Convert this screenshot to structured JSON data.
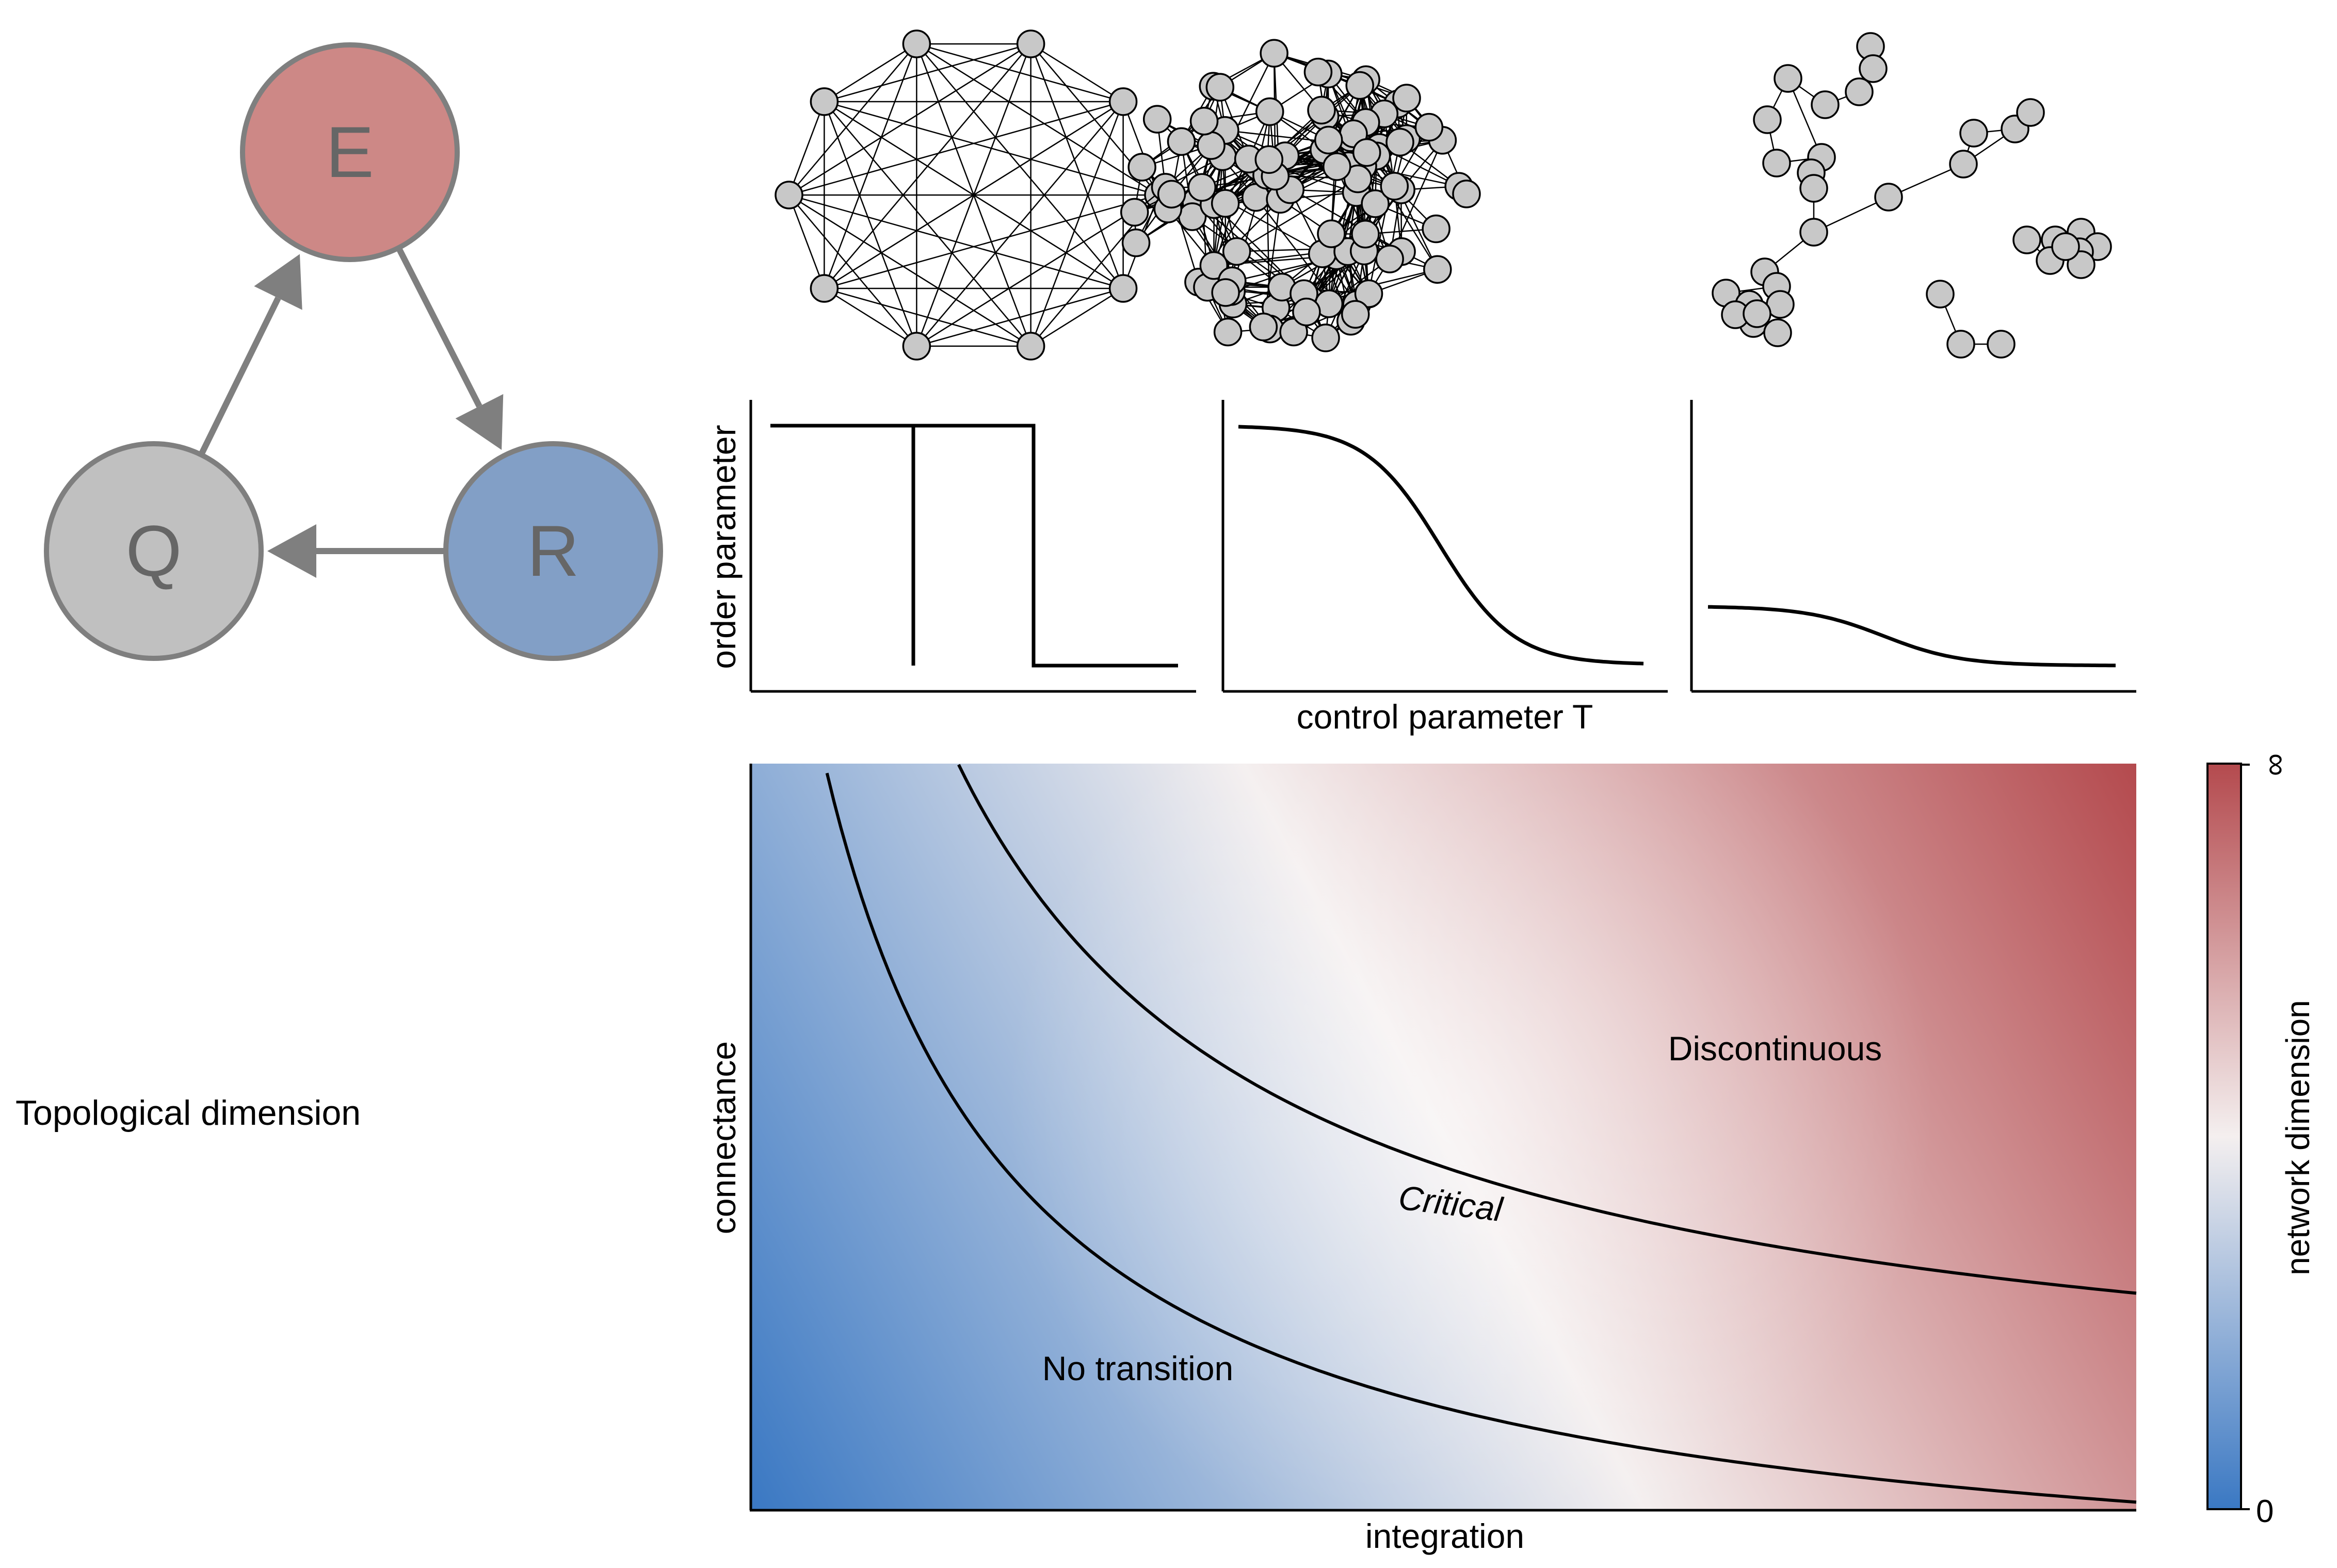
{
  "cycle": {
    "nodes": [
      {
        "id": "E",
        "label": "E",
        "color": "#cd8886"
      },
      {
        "id": "R",
        "label": "R",
        "color": "#829fc6"
      },
      {
        "id": "Q",
        "label": "Q",
        "color": "#c0c0c0"
      }
    ],
    "edges": [
      {
        "from": "Q",
        "to": "E"
      },
      {
        "from": "E",
        "to": "R"
      },
      {
        "from": "R",
        "to": "Q"
      }
    ],
    "stroke_color": "#7f7f7f",
    "label_color": "#666666"
  },
  "side_label": "Topological dimension",
  "networks": [
    {
      "name": "complete-network"
    },
    {
      "name": "dense-random-network"
    },
    {
      "name": "sparse-fragmented-network"
    }
  ],
  "transition_plots": {
    "ylabel": "order parameter",
    "xlabel": "control parameter T",
    "panels": [
      {
        "type": "hysteresis-discontinuous"
      },
      {
        "type": "continuous-sigmoid"
      },
      {
        "type": "weak-smooth"
      }
    ]
  },
  "phase_diagram": {
    "xlabel": "integration",
    "ylabel": "connectance",
    "regions": {
      "discontinuous": "Discontinuous",
      "critical": "Critical",
      "no_transition": "No transition"
    },
    "colormap": {
      "low": "#3a78c3",
      "mid": "#f4efef",
      "high": "#b44a4e"
    },
    "colorbar": {
      "label": "network dimension",
      "min_label": "0",
      "max_label": "∞"
    }
  }
}
